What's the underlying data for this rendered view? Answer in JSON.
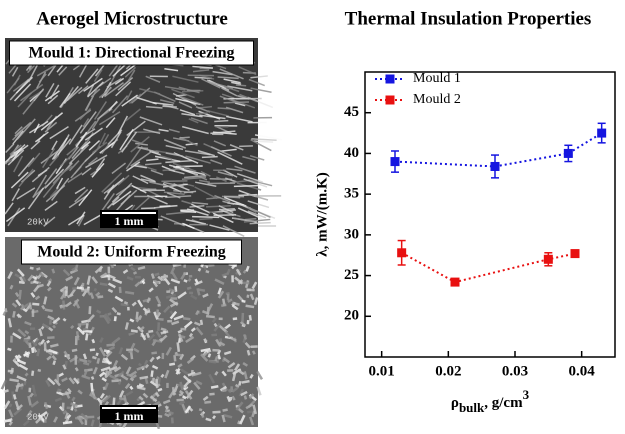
{
  "left_panel": {
    "title": "Aerogel Microstructure",
    "images": [
      {
        "label": "Mould 1: Directional Freezing",
        "scale_bar": "1 mm",
        "voltage": "20kV"
      },
      {
        "label": "Mould 2: Uniform Freezing",
        "scale_bar": "1 mm",
        "voltage": "20kV"
      }
    ]
  },
  "chart_data": {
    "type": "scatter",
    "title": "Thermal Insulation Properties",
    "xlabel": [
      "ρ",
      "bulk",
      ", g/cm",
      "3"
    ],
    "ylabel": "λ, mW/(m.K)",
    "xlim": [
      0.0075,
      0.045
    ],
    "xticks": [
      0.01,
      0.02,
      0.03,
      0.04
    ],
    "ylim": [
      15,
      50
    ],
    "yticks": [
      20,
      25,
      30,
      35,
      40,
      45
    ],
    "legend": "upper left",
    "line_style": "dotted",
    "series": [
      {
        "name": "Mould 1",
        "color": "#1515e0",
        "x": [
          0.012,
          0.027,
          0.038,
          0.043
        ],
        "values": [
          39,
          38.4,
          40,
          42.5
        ],
        "errors": [
          1.3,
          1.4,
          1,
          1.2
        ]
      },
      {
        "name": "Mould 2",
        "color": "#e81010",
        "x": [
          0.013,
          0.021,
          0.035,
          0.039
        ],
        "values": [
          27.8,
          24.2,
          27,
          27.7
        ],
        "errors": [
          1.5,
          0.4,
          0.8,
          0.3
        ]
      }
    ]
  }
}
